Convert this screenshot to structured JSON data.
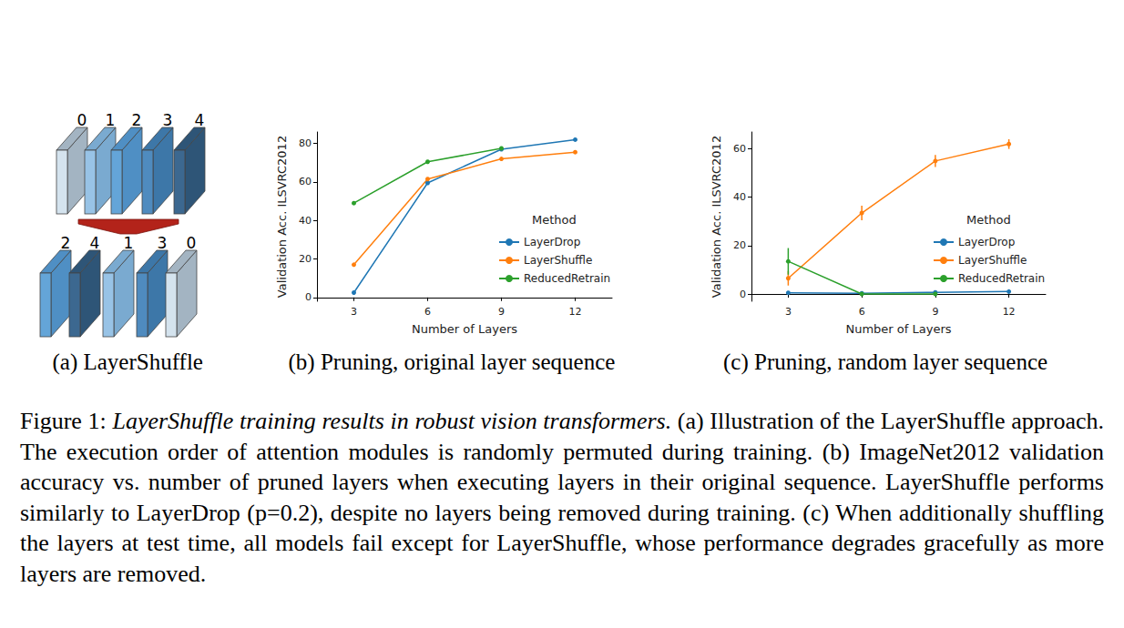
{
  "panel_a": {
    "top_labels": [
      "0",
      "1",
      "2",
      "3",
      "4"
    ],
    "bottom_labels": [
      "2",
      "4",
      "1",
      "3",
      "0"
    ],
    "caption": "(a) LayerShuffle"
  },
  "chart_data": [
    {
      "type": "line",
      "caption": "(b) Pruning, original layer sequence",
      "x_label": "Number of Layers",
      "y_label": "Validation Acc. ILSVRC2012",
      "legend_title": "Method",
      "legend": "right",
      "grid": false,
      "x": [
        3,
        6,
        9,
        12
      ],
      "xlim": [
        1.5,
        13.5
      ],
      "xticks": [
        3,
        6,
        9,
        12
      ],
      "ylim": [
        -2,
        86
      ],
      "yticks": [
        0,
        20,
        40,
        60,
        80
      ],
      "series": [
        {
          "name": "LayerDrop",
          "color": "#1f77b4",
          "marker": "circle",
          "values": [
            2.5,
            59.5,
            77,
            82
          ]
        },
        {
          "name": "LayerShuffle",
          "color": "#ff7f0e",
          "marker": "circle",
          "values": [
            17,
            61.5,
            72,
            75.5
          ]
        },
        {
          "name": "ReducedRetrain",
          "color": "#2ca02c",
          "marker": "circle",
          "values": [
            49,
            70.5,
            77.5,
            null
          ]
        }
      ]
    },
    {
      "type": "line",
      "caption": "(c) Pruning, random layer sequence",
      "x_label": "Number of Layers",
      "y_label": "Validation Acc. ILSVRC2012",
      "legend_title": "Method",
      "legend": "right",
      "grid": false,
      "x": [
        3,
        6,
        9,
        12
      ],
      "xlim": [
        1.5,
        13.5
      ],
      "xticks": [
        3,
        6,
        9,
        12
      ],
      "ylim": [
        -3,
        67
      ],
      "yticks": [
        0,
        20,
        40,
        60
      ],
      "series": [
        {
          "name": "LayerDrop",
          "color": "#1f77b4",
          "marker": "circle",
          "values": [
            0.5,
            0.3,
            0.7,
            1.0
          ]
        },
        {
          "name": "LayerShuffle",
          "color": "#ff7f0e",
          "marker": "circle",
          "values": [
            6.5,
            33.5,
            55,
            62
          ],
          "errors": [
            3,
            3,
            2.5,
            2
          ]
        },
        {
          "name": "ReducedRetrain",
          "color": "#2ca02c",
          "marker": "circle",
          "values": [
            13.5,
            0,
            0,
            null
          ],
          "errors": [
            5.5,
            0.5,
            0.5,
            null
          ]
        }
      ]
    }
  ],
  "caption": {
    "label": "Figure 1:",
    "title": "LayerShuffle training results in robust vision transformers.",
    "text": "(a) Illustration of the LayerShuffle approach. The execution order of attention modules is randomly permuted during training. (b) ImageNet2012 validation accuracy vs. number of pruned layers when executing layers in their original sequence. LayerShuffle performs similarly to LayerDrop (p=0.2), despite no layers being removed during training. (c) When additionally shuffling the layers at test time, all models fail except for LayerShuffle, whose performance degrades gracefully as more layers are removed."
  }
}
